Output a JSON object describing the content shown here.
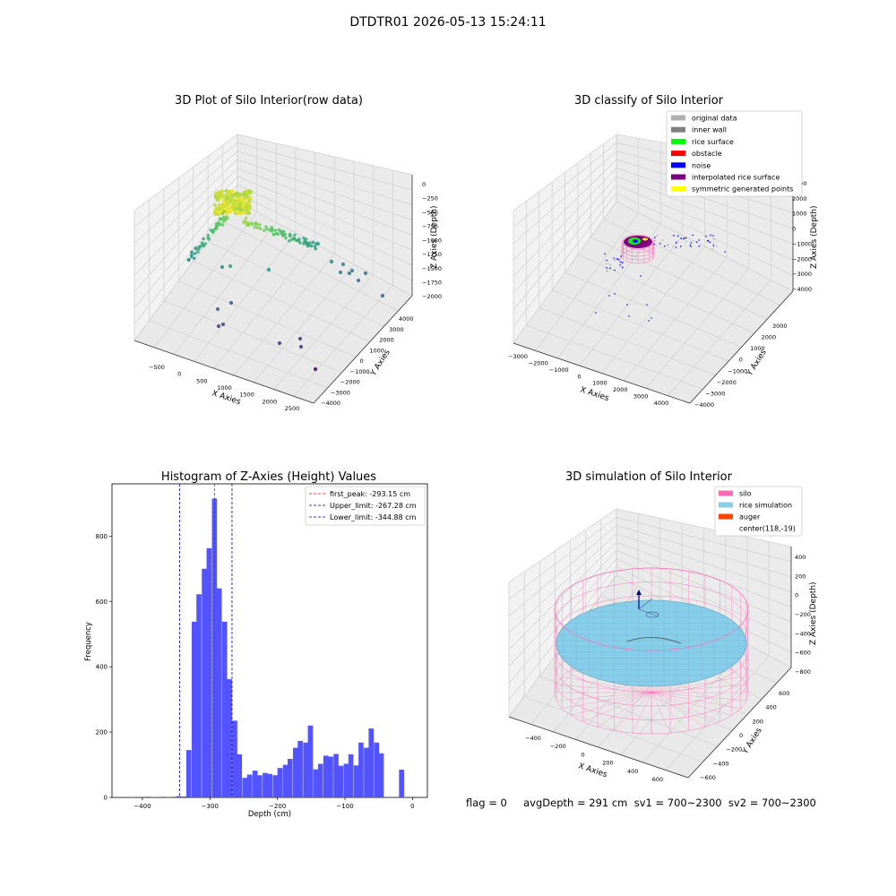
{
  "suptitle": "DTDTR01 2026-05-13 15:24:11",
  "status_line": "flag = 0     avgDepth = 291 cm  sv1 = 700~2300  sv2 = 700~2300",
  "colors": {
    "original_data": "#b0b0b0",
    "inner_wall": "#808080",
    "rice_surface": "#00ff00",
    "obstacle": "#ff0000",
    "noise": "#0000ff",
    "interpolated_rice_surface": "#800080",
    "symmetric_generated_points": "#ffff00",
    "silo": "#ff69b4",
    "rice_simulation": "#87ceeb",
    "auger": "#ff4500",
    "hist_bar": "#4b4bff",
    "first_peak_line": "#ff0000",
    "limit_line": "#0000aa"
  },
  "chart_data": [
    {
      "type": "scatter",
      "title": "3D Plot of Silo Interior(row data)",
      "xlabel": "X Axies",
      "ylabel": "Y Axies",
      "zlabel": "Z Axies (Depth)",
      "x_ticks": [
        "−500",
        "0",
        "500",
        "1000",
        "1500",
        "2000",
        "2500"
      ],
      "y_ticks": [
        "−4000",
        "−3000",
        "−2000",
        "−1000",
        "0",
        "1000",
        "2000",
        "3000",
        "4000"
      ],
      "z_ticks": [
        "0",
        "−250",
        "−500",
        "−750",
        "−1000",
        "−1250",
        "−1500",
        "−1750",
        "−2000"
      ],
      "colormap": "viridis"
    },
    {
      "type": "scatter",
      "title": "3D classify of Silo Interior",
      "xlabel": "X Axies",
      "ylabel": "Y Axies",
      "zlabel": "Z Axies (Depth)",
      "x_ticks": [
        "−3000",
        "−2000",
        "−1000",
        "0",
        "1000",
        "2000",
        "3000",
        "4000"
      ],
      "y_ticks": [
        "−4000",
        "−3000",
        "−2000",
        "−1000",
        "0",
        "1000",
        "2000",
        "3000"
      ],
      "z_ticks": [
        "3000",
        "2000",
        "1000",
        "0",
        "−1000",
        "−2000",
        "−3000",
        "−4000"
      ],
      "legend": [
        "original data",
        "inner wall",
        "rice surface",
        "obstacle",
        "noise",
        "interpolated rice surface",
        "symmetric generated points"
      ],
      "legend_loc": "top-right"
    },
    {
      "type": "bar",
      "title": "Histogram of Z-Axies (Height) Values",
      "xlabel": "Depth (cm)",
      "ylabel": "Frequency",
      "xlim": [
        -445,
        22
      ],
      "ylim": [
        0,
        960
      ],
      "x_ticks": [
        -400,
        -300,
        -200,
        -100,
        0
      ],
      "x_tick_labels": [
        "−400",
        "−300",
        "−200",
        "−100",
        "0"
      ],
      "y_ticks": [
        0,
        200,
        400,
        600,
        800
      ],
      "y_tick_labels": [
        "0",
        "200",
        "400",
        "600",
        "800"
      ],
      "bin_width": 7.5,
      "bins": [
        [
          -420,
          1
        ],
        [
          -395,
          2
        ],
        [
          -387,
          1
        ],
        [
          -372,
          2
        ],
        [
          -365,
          1
        ],
        [
          -357,
          2
        ],
        [
          -350,
          4
        ],
        [
          -342,
          3
        ],
        [
          -335,
          145
        ],
        [
          -327,
          538
        ],
        [
          -320,
          622
        ],
        [
          -312,
          700
        ],
        [
          -305,
          763
        ],
        [
          -297,
          915
        ],
        [
          -290,
          640
        ],
        [
          -282,
          538
        ],
        [
          -275,
          362
        ],
        [
          -267,
          235
        ],
        [
          -260,
          132
        ],
        [
          -252,
          60
        ],
        [
          -245,
          70
        ],
        [
          -237,
          82
        ],
        [
          -230,
          68
        ],
        [
          -222,
          75
        ],
        [
          -215,
          72
        ],
        [
          -207,
          68
        ],
        [
          -200,
          90
        ],
        [
          -192,
          100
        ],
        [
          -185,
          118
        ],
        [
          -177,
          152
        ],
        [
          -170,
          173
        ],
        [
          -162,
          168
        ],
        [
          -155,
          220
        ],
        [
          -147,
          86
        ],
        [
          -140,
          103
        ],
        [
          -132,
          128
        ],
        [
          -125,
          125
        ],
        [
          -117,
          133
        ],
        [
          -110,
          97
        ],
        [
          -102,
          103
        ],
        [
          -95,
          132
        ],
        [
          -87,
          98
        ],
        [
          -80,
          168
        ],
        [
          -72,
          152
        ],
        [
          -65,
          211
        ],
        [
          -57,
          168
        ],
        [
          -50,
          135
        ],
        [
          -20,
          85
        ]
      ],
      "vlines": [
        {
          "label": "first_peak: -293.15 cm",
          "x": -293.15,
          "color_key": "first_peak_line"
        },
        {
          "label": "Upper_limit: -267.28 cm",
          "x": -267.28,
          "color_key": "limit_line"
        },
        {
          "label": "Lower_limit: -344.88 cm",
          "x": -344.88,
          "color_key": "limit_line"
        }
      ],
      "legend_loc": "top-right"
    },
    {
      "type": "scatter",
      "title": "3D simulation of Silo Interior",
      "xlabel": "X Axies",
      "ylabel": "Y Axies",
      "zlabel": "Z Axies (Depth)",
      "x_ticks": [
        "−400",
        "−200",
        "0",
        "200",
        "400",
        "600"
      ],
      "y_ticks": [
        "−600",
        "−400",
        "−200",
        "0",
        "200",
        "400",
        "600"
      ],
      "z_ticks": [
        "400",
        "200",
        "0",
        "−200",
        "−400",
        "−600",
        "−800"
      ],
      "legend": [
        "silo",
        "rice simulation",
        "auger",
        "center(118,-19)"
      ],
      "legend_loc": "top-right"
    }
  ]
}
